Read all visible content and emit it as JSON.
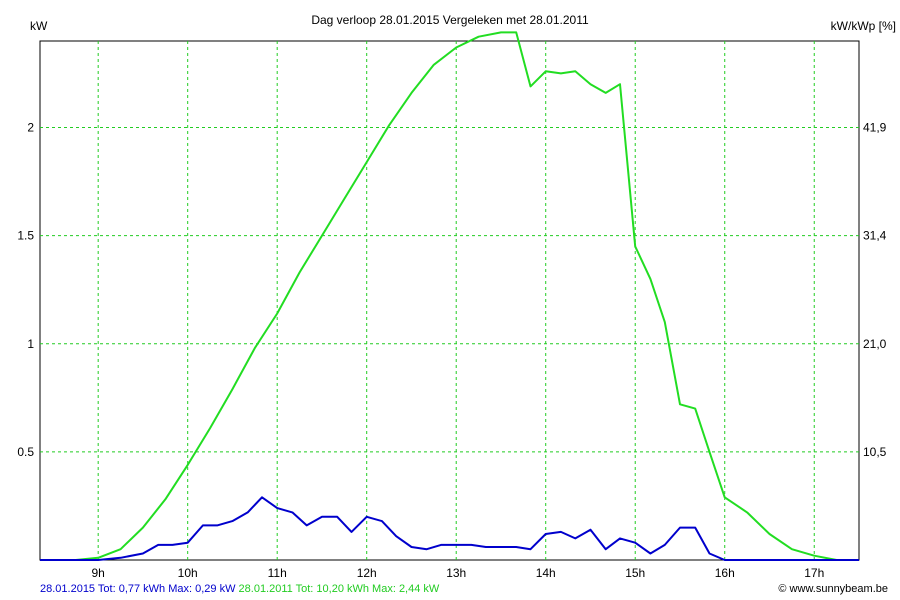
{
  "chart_data": {
    "type": "line",
    "title": "Dag  verloop 28.01.2015   Vergeleken met 28.01.2011",
    "ylabel_left": "kW",
    "ylabel_right": "kW/kWp [%]",
    "x_ticks": [
      "9h",
      "10h",
      "11h",
      "12h",
      "13h",
      "14h",
      "15h",
      "16h",
      "17h"
    ],
    "x_tick_values": [
      9,
      10,
      11,
      12,
      13,
      14,
      15,
      16,
      17
    ],
    "xlim": [
      8.35,
      17.5
    ],
    "y_ticks_left": [
      "0.5",
      "1",
      "1.5",
      "2"
    ],
    "y_tick_values_left": [
      0.5,
      1,
      1.5,
      2
    ],
    "y_ticks_right": [
      "10,5",
      "21,0",
      "31,4",
      "41,9"
    ],
    "ylim": [
      0,
      2.4
    ],
    "grid": true,
    "series": [
      {
        "name": "28.01.2015",
        "color": "#0000cc",
        "x": [
          8.35,
          8.5,
          8.75,
          9.0,
          9.25,
          9.5,
          9.67,
          9.83,
          10.0,
          10.17,
          10.33,
          10.5,
          10.67,
          10.83,
          11.0,
          11.17,
          11.33,
          11.5,
          11.67,
          11.83,
          12.0,
          12.17,
          12.33,
          12.5,
          12.67,
          12.83,
          13.0,
          13.17,
          13.33,
          13.5,
          13.67,
          13.83,
          14.0,
          14.17,
          14.33,
          14.5,
          14.67,
          14.83,
          15.0,
          15.17,
          15.33,
          15.5,
          15.67,
          15.83,
          16.0,
          16.25,
          16.5,
          16.75,
          17.0,
          17.25,
          17.5
        ],
        "values": [
          0,
          0,
          0,
          0,
          0.01,
          0.03,
          0.07,
          0.07,
          0.08,
          0.16,
          0.16,
          0.18,
          0.22,
          0.29,
          0.24,
          0.22,
          0.16,
          0.2,
          0.2,
          0.13,
          0.2,
          0.18,
          0.11,
          0.06,
          0.05,
          0.07,
          0.07,
          0.07,
          0.06,
          0.06,
          0.06,
          0.05,
          0.12,
          0.13,
          0.1,
          0.14,
          0.05,
          0.1,
          0.08,
          0.03,
          0.07,
          0.15,
          0.15,
          0.03,
          0,
          0,
          0,
          0,
          0,
          0,
          0
        ]
      },
      {
        "name": "28.01.2011",
        "color": "#22dd22",
        "x": [
          8.35,
          8.5,
          8.75,
          9.0,
          9.25,
          9.5,
          9.75,
          10.0,
          10.25,
          10.5,
          10.75,
          11.0,
          11.25,
          11.5,
          11.75,
          12.0,
          12.25,
          12.5,
          12.75,
          13.0,
          13.25,
          13.5,
          13.67,
          13.83,
          14.0,
          14.17,
          14.33,
          14.5,
          14.67,
          14.83,
          15.0,
          15.17,
          15.33,
          15.5,
          15.67,
          15.83,
          16.0,
          16.25,
          16.5,
          16.75,
          17.0,
          17.25,
          17.5
        ],
        "values": [
          0,
          0,
          0,
          0.01,
          0.05,
          0.15,
          0.28,
          0.44,
          0.61,
          0.79,
          0.98,
          1.14,
          1.33,
          1.5,
          1.67,
          1.84,
          2.01,
          2.16,
          2.29,
          2.37,
          2.42,
          2.44,
          2.44,
          2.19,
          2.26,
          2.25,
          2.26,
          2.2,
          2.16,
          2.2,
          1.45,
          1.3,
          1.1,
          0.72,
          0.7,
          0.5,
          0.29,
          0.22,
          0.12,
          0.05,
          0.02,
          0,
          0
        ]
      }
    ]
  },
  "legend": {
    "s2015": "28.01.2015 Tot: 0,77 kWh Max: 0,29 kW",
    "s2011": "28.01.2011 Tot: 10,20 kWh Max: 2,44 kW"
  },
  "credit": "© www.sunnybeam.be"
}
